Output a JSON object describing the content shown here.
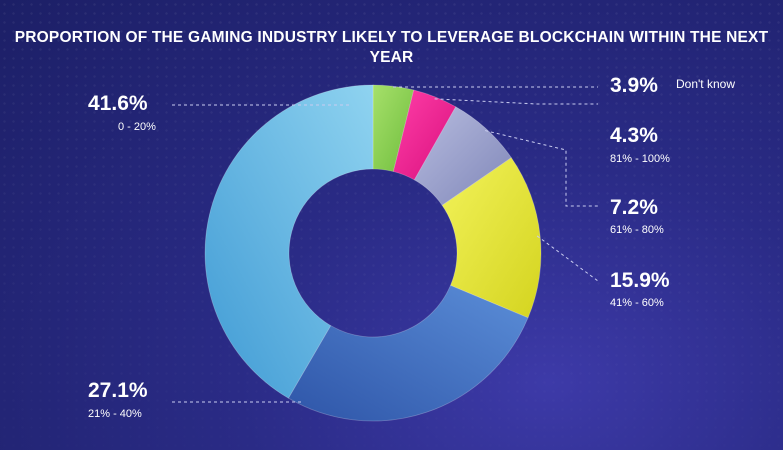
{
  "chart_data": {
    "type": "pie",
    "title": "PROPORTION OF THE GAMING INDUSTRY LIKELY TO LEVERAGE BLOCKCHAIN WITHIN THE NEXT YEAR",
    "donut": true,
    "slices": [
      {
        "category": "Don't know",
        "value": 3.9,
        "label": "3.9%",
        "color": "#8fd14f"
      },
      {
        "category": "81% - 100%",
        "value": 4.3,
        "label": "4.3%",
        "color": "#e8168b"
      },
      {
        "category": "61% - 80%",
        "value": 7.2,
        "label": "7.2%",
        "color": "#9aa0c9"
      },
      {
        "category": "41% - 60%",
        "value": 15.9,
        "label": "15.9%",
        "color": "#e4e63a"
      },
      {
        "category": "21% - 40%",
        "value": 27.1,
        "label": "27.1%",
        "color": "#3d6fc4"
      },
      {
        "category": "0 - 20%",
        "value": 41.6,
        "label": "41.6%",
        "color": "#5fb8e3"
      }
    ]
  }
}
